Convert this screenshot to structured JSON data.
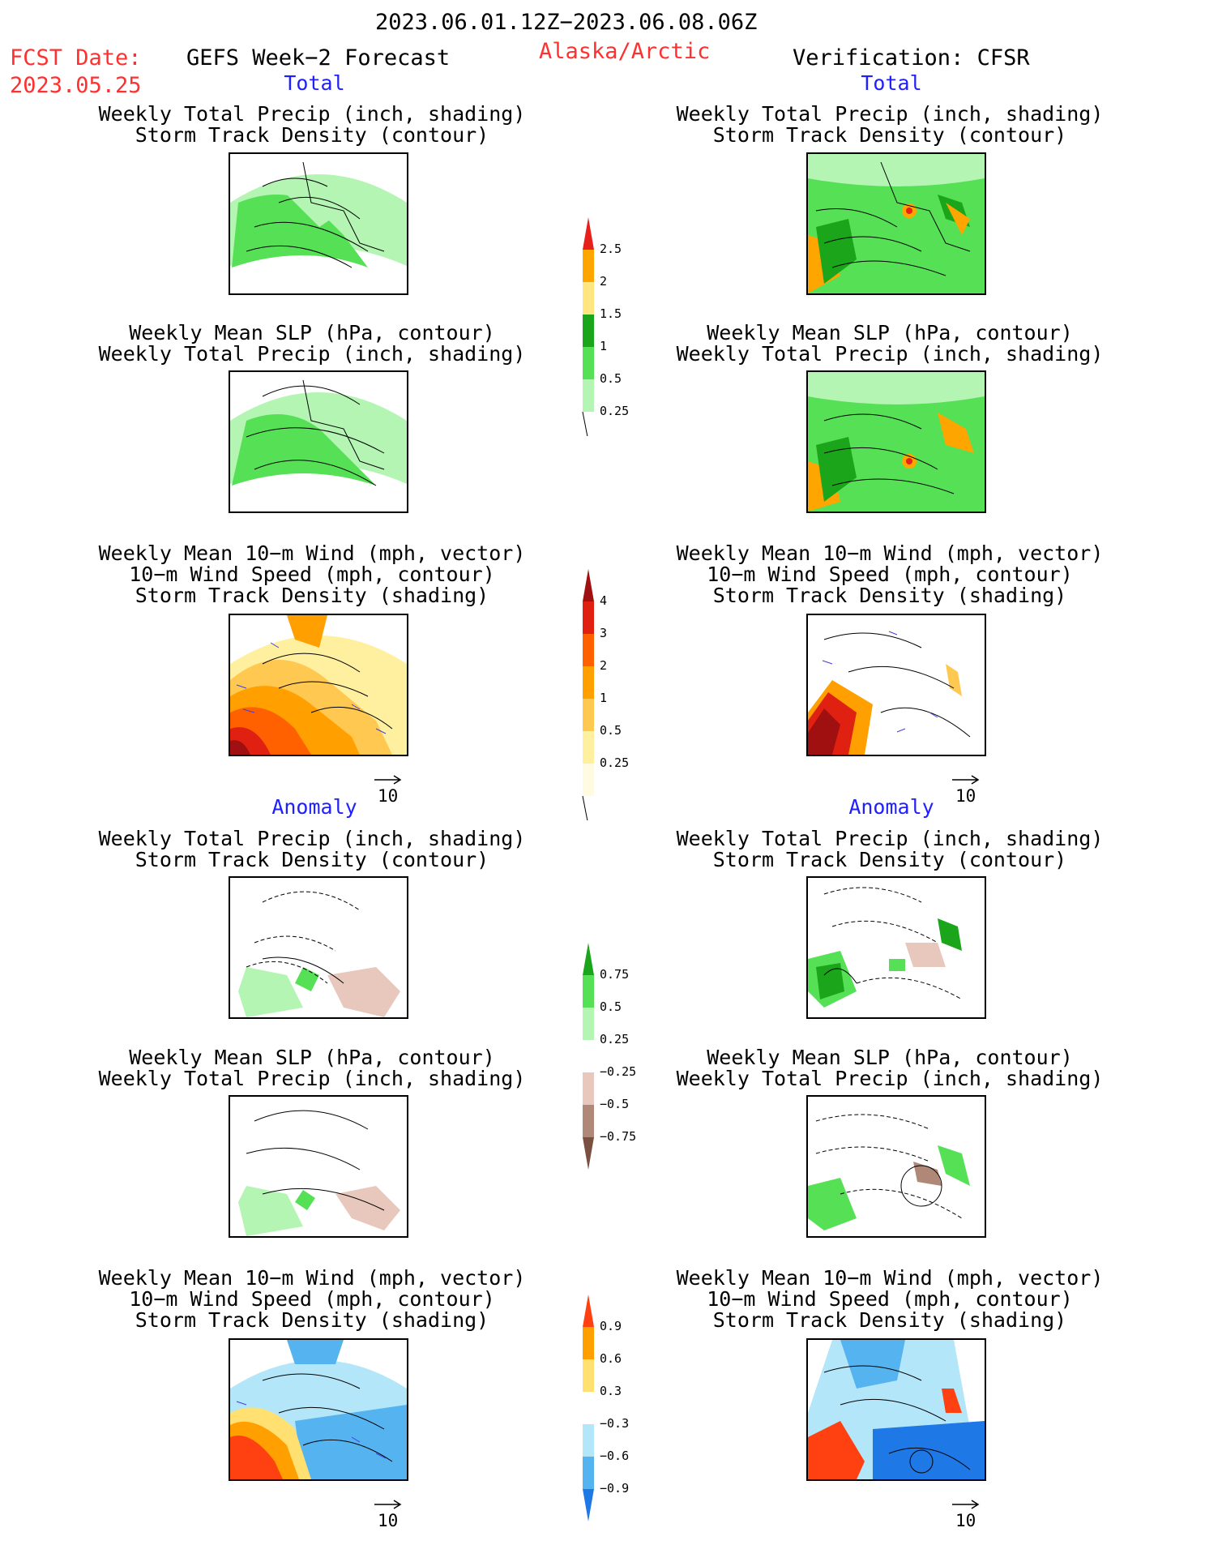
{
  "header": {
    "valid_range": "2023.06.01.12Z−2023.06.08.06Z",
    "fcst_label": "FCST Date:",
    "fcst_date": "2023.05.25",
    "model": "GEFS Week−2 Forecast",
    "region": "Alaska/Arctic",
    "verification": "Verification: CFSR"
  },
  "sections": {
    "total": "Total",
    "anomaly": "Anomaly"
  },
  "titles": {
    "precip_track": [
      "Weekly Total Precip (inch, shading)",
      "Storm Track Density (contour)"
    ],
    "slp_precip": [
      "Weekly Mean SLP (hPa, contour)",
      "Weekly Total Precip (inch, shading)"
    ],
    "wind_track": [
      "Weekly Mean 10−m Wind (mph, vector)",
      "10−m Wind Speed (mph, contour)",
      "Storm Track Density (shading)"
    ]
  },
  "vector_ref": "10",
  "colorbars": {
    "precip_total": {
      "labels": [
        "2.5",
        "2",
        "1.5",
        "1",
        "0.5",
        "0.25"
      ],
      "colors": [
        "#e8201c",
        "#ffa500",
        "#ffe680",
        "#1aa51a",
        "#55e055",
        "#b4f5b4"
      ]
    },
    "track_total": {
      "labels": [
        "4",
        "3",
        "2",
        "1",
        "0.5",
        "0.25"
      ],
      "colors": [
        "#a01010",
        "#e02010",
        "#ff6000",
        "#ffa000",
        "#ffc850",
        "#fff0a0",
        "#fffbe0"
      ]
    },
    "precip_anom": {
      "labels": [
        "0.75",
        "0.5",
        "0.25",
        "−0.25",
        "−0.5",
        "−0.75"
      ],
      "colors": [
        "#1aa51a",
        "#55e055",
        "#b4f5b4",
        "#ffffff",
        "#e8c8bc",
        "#b08878",
        "#7a5040"
      ]
    },
    "track_anom": {
      "labels": [
        "0.9",
        "0.6",
        "0.3",
        "−0.3",
        "−0.6",
        "−0.9"
      ],
      "colors": [
        "#ff4010",
        "#ffa000",
        "#ffe070",
        "#ffffff",
        "#b4e6fa",
        "#55b4f0",
        "#1e78e6"
      ]
    }
  },
  "colors": {
    "red_text": "#ff3030",
    "blue_text": "#2020ff"
  }
}
